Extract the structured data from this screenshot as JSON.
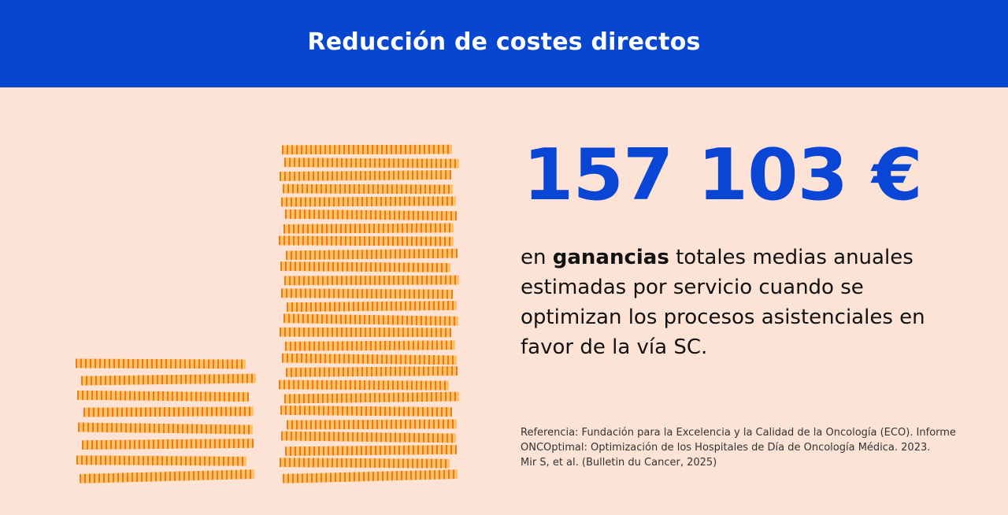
{
  "header": {
    "title": "Reducción de costes directos"
  },
  "main": {
    "amount": "157 103 €",
    "description": {
      "prefix": "en ",
      "emphasis": "ganancias",
      "rest": " totales medias anuales estimadas por servicio cuando se optimizan los procesos asistenciales en favor de la vía SC."
    },
    "reference_lines": [
      "Referencia: Fundación para la Excelencia y la Calidad de la Oncología (ECO). Informe",
      "ONCOptimal: Optimización de los Hospitales de Día de Oncología Médica. 2023.",
      "Mir S, et al. (Bulletin du Cancer, 2025)"
    ]
  },
  "illustration": {
    "small_stack_coins": 8,
    "tall_stack_coins": 26,
    "icon": "coin-stacks-icon"
  },
  "colors": {
    "header_bg": "#0646d0",
    "page_bg": "#fde3d6",
    "amount": "#0a46d6",
    "coin_light": "#ffc26a",
    "coin_dark": "#ee7a10"
  }
}
